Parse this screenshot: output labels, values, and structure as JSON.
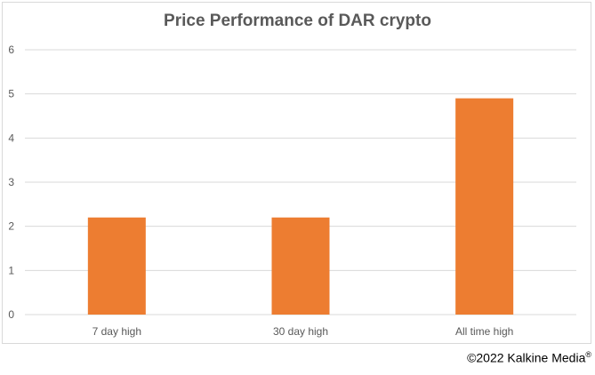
{
  "chart_data": {
    "type": "bar",
    "title": "Price Performance of DAR crypto",
    "categories": [
      "7 day high",
      "30 day high",
      "All time high"
    ],
    "values": [
      2.2,
      2.2,
      4.9
    ],
    "ylim": [
      0,
      6
    ],
    "yticks": [
      0,
      1,
      2,
      3,
      4,
      5,
      6
    ],
    "grid": true,
    "legend": "none",
    "bar_color": "#ed7d31",
    "grid_color": "#d9d9d9"
  },
  "footer": {
    "copyright": "©2022 Kalkine Media",
    "registered_mark": "®"
  }
}
